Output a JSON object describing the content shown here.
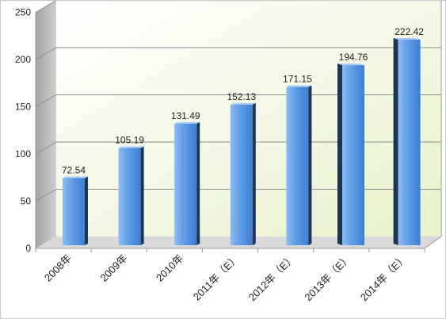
{
  "chart_data": {
    "type": "bar",
    "style": "3d-column",
    "categories": [
      "2008年",
      "2009年",
      "2010年",
      "2011年（E）",
      "2012年（E）",
      "2013年（E）",
      "2014年（E）"
    ],
    "values": [
      72.54,
      105.19,
      131.49,
      152.13,
      171.15,
      194.76,
      222.42
    ],
    "data_labels": [
      "72.54",
      "105.19",
      "131.49",
      "152.13",
      "171.15",
      "194.76",
      "222.42"
    ],
    "y_ticks": [
      "0",
      "50",
      "100",
      "150",
      "200",
      "250"
    ],
    "ylim": [
      0,
      250
    ],
    "grid": true,
    "legend": "none"
  },
  "colors": {
    "bar_light": "#8cbcf3",
    "bar_mid": "#5f9be6",
    "bar_dark": "#3f7dd3",
    "bar_side": "#1d3550",
    "bar_top": "#a9cbf5",
    "back_wall_light": "#ffffff",
    "back_wall": "#e8f2cc",
    "left_wall_dark": "#a3a3a3",
    "left_wall_light": "#d0d0d0",
    "floor": "#d9d9d9",
    "gridline": "#8c8c8c",
    "axis_line": "#9a9a9a"
  }
}
